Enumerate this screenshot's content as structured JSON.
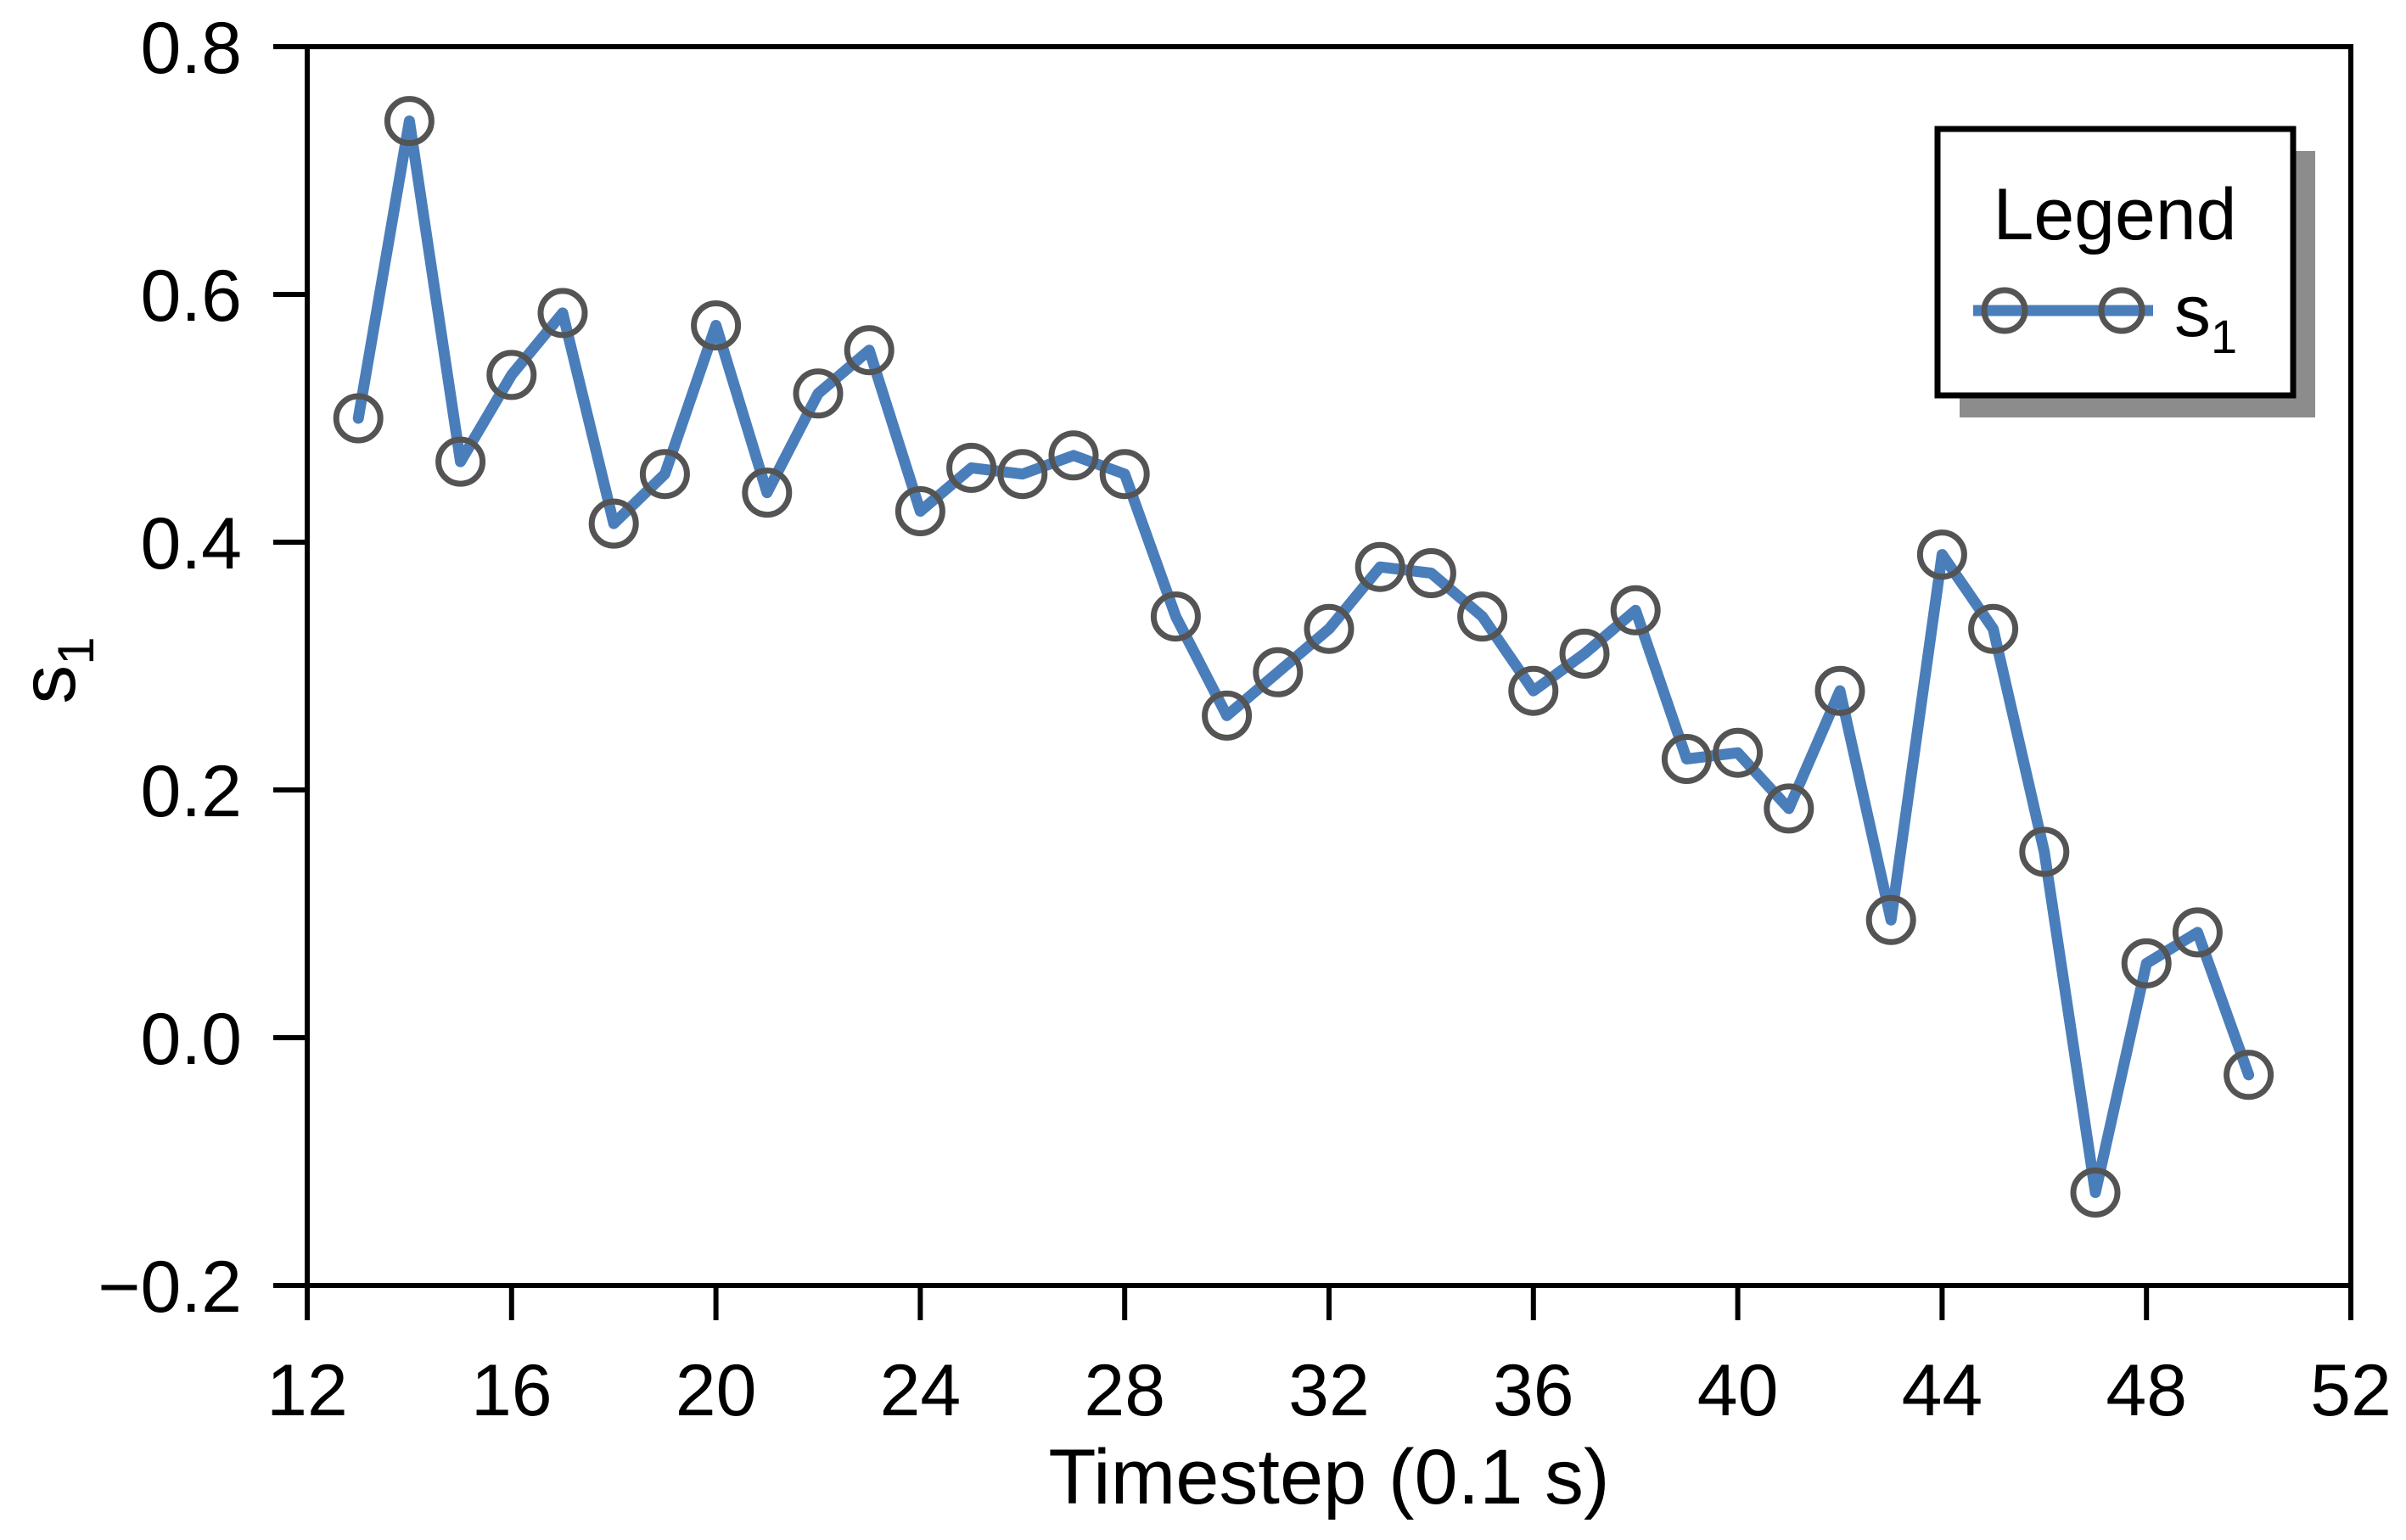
{
  "colors": {
    "line": "#4a7ebb",
    "marker_edge": "#545454",
    "axis": "#000000",
    "legend_shadow": "#8c8c8c",
    "legend_border": "#000000",
    "background": "#ffffff"
  },
  "chart_data": {
    "type": "line",
    "title": "",
    "xlabel": "Timestep (0.1 s)",
    "ylabel": {
      "base": "s",
      "sub": "1"
    },
    "x_range": [
      12,
      52
    ],
    "y_range": [
      -0.2,
      0.8
    ],
    "grid": false,
    "x_ticks": [
      {
        "v": 12,
        "label": "12"
      },
      {
        "v": 16,
        "label": "16"
      },
      {
        "v": 20,
        "label": "20"
      },
      {
        "v": 24,
        "label": "24"
      },
      {
        "v": 28,
        "label": "28"
      },
      {
        "v": 32,
        "label": "32"
      },
      {
        "v": 36,
        "label": "36"
      },
      {
        "v": 40,
        "label": "40"
      },
      {
        "v": 44,
        "label": "44"
      },
      {
        "v": 48,
        "label": "48"
      },
      {
        "v": 52,
        "label": "52"
      }
    ],
    "y_ticks": [
      {
        "v": 0.8,
        "label": "0.8"
      },
      {
        "v": 0.6,
        "label": "0.6"
      },
      {
        "v": 0.4,
        "label": "0.4"
      },
      {
        "v": 0.2,
        "label": "0.2"
      },
      {
        "v": 0.0,
        "label": "0.0"
      },
      {
        "v": -0.2,
        "label": "−0.2"
      }
    ],
    "legend": {
      "title": "Legend",
      "position": "top-right",
      "entries": [
        {
          "label_base": "s",
          "label_sub": "1",
          "marker": "circle-line"
        }
      ]
    },
    "series": [
      {
        "name": "s_1",
        "color": "#4a7ebb",
        "marker_edge": "#545454",
        "x": [
          13,
          14,
          15,
          16,
          17,
          18,
          19,
          20,
          21,
          22,
          23,
          24,
          25,
          26,
          27,
          28,
          29,
          30,
          31,
          32,
          33,
          34,
          35,
          36,
          37,
          38,
          39,
          40,
          41,
          42,
          43,
          44,
          45,
          46,
          47,
          48,
          49,
          50
        ],
        "values": [
          0.5,
          0.74,
          0.465,
          0.535,
          0.585,
          0.415,
          0.455,
          0.575,
          0.44,
          0.52,
          0.555,
          0.425,
          0.46,
          0.455,
          0.47,
          0.455,
          0.34,
          0.26,
          0.295,
          0.33,
          0.38,
          0.375,
          0.34,
          0.28,
          0.31,
          0.345,
          0.225,
          0.23,
          0.185,
          0.28,
          0.095,
          0.39,
          0.33,
          0.15,
          -0.125,
          0.06,
          0.085,
          -0.03
        ]
      }
    ]
  }
}
